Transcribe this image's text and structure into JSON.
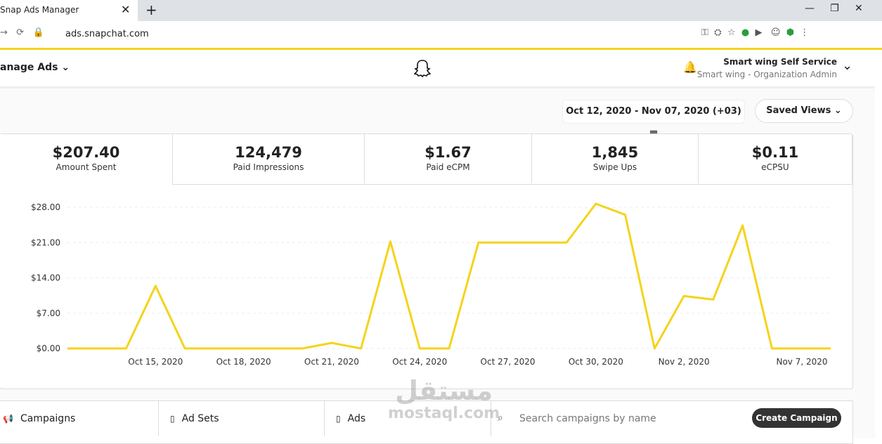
{
  "browser": {
    "tab_title": "Snap Ads Manager",
    "url": "ads.snapchat.com"
  },
  "header": {
    "menu": "anage Ads",
    "account_name": "Smart wing Self Service",
    "account_role": "Smart wing - Organization Admin"
  },
  "toolbar": {
    "date_range": "Oct 12, 2020 - Nov 07, 2020 (+03)",
    "saved_views": "Saved Views"
  },
  "metrics": [
    {
      "value": "$207.40",
      "label": "Amount Spent"
    },
    {
      "value": "124,479",
      "label": "Paid Impressions"
    },
    {
      "value": "$1.67",
      "label": "Paid eCPM"
    },
    {
      "value": "1,845",
      "label": "Swipe Ups"
    },
    {
      "value": "$0.11",
      "label": "eCPSU"
    }
  ],
  "chart_data": {
    "type": "line",
    "categories": [
      null,
      null,
      null,
      "Oct 15, 2020",
      null,
      null,
      "Oct 18, 2020",
      null,
      null,
      "Oct 21, 2020",
      null,
      null,
      "Oct 24, 2020",
      null,
      null,
      "Oct 27, 2020",
      null,
      null,
      "Oct 30, 2020",
      null,
      null,
      "Nov 2, 2020",
      null,
      null,
      null,
      null,
      "Nov 7, 2020"
    ],
    "series": [
      {
        "name": "Amount Spent",
        "color": "#f5d31c",
        "values": [
          0,
          0,
          0,
          12.4,
          0,
          0,
          0,
          0,
          0,
          1.1,
          0,
          21.2,
          0,
          0,
          21,
          21,
          21,
          21,
          28.7,
          26.5,
          0,
          10.4,
          9.7,
          24.4,
          0,
          0,
          0
        ]
      }
    ],
    "ylim": [
      0,
      30
    ],
    "yticks": [
      {
        "value": 0,
        "label": "$0.00"
      },
      {
        "value": 7,
        "label": "$7.00"
      },
      {
        "value": 14,
        "label": "$14.00"
      },
      {
        "value": 21,
        "label": "$21.00"
      },
      {
        "value": 28,
        "label": "$28.00"
      }
    ],
    "grid": true
  },
  "tabs": [
    "Campaigns",
    "Ad Sets",
    "Ads"
  ],
  "search_placeholder": "Search campaigns by name",
  "create_button": "Create Campaign",
  "watermark": {
    "arabic": "مستقل",
    "latin": "mostaql.com"
  }
}
